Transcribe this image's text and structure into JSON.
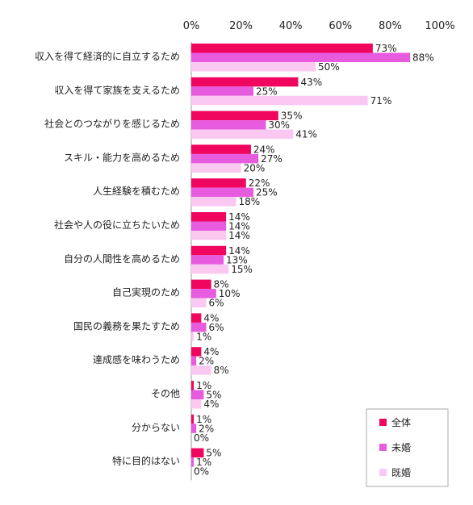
{
  "chart_data": {
    "type": "bar",
    "orientation": "horizontal",
    "x_ticks": [
      "0%",
      "20%",
      "40%",
      "60%",
      "80%",
      "100%"
    ],
    "xlim": [
      0,
      100
    ],
    "unit": "%",
    "categories": [
      "収入を得て経済的に自立するため",
      "収入を得て家族を支えるため",
      "社会とのつながりを感じるため",
      "スキル・能力を高めるため",
      "人生経験を積むため",
      "社会や人の役に立ちたいため",
      "自分の人間性を高めるため",
      "自己実現のため",
      "国民の義務を果たすため",
      "達成感を味わうため",
      "その他",
      "分からない",
      "特に目的はない"
    ],
    "series": [
      {
        "name": "全体",
        "color": "#f0055f",
        "values": [
          73,
          43,
          35,
          24,
          22,
          14,
          14,
          8,
          4,
          4,
          1,
          1,
          5
        ]
      },
      {
        "name": "未婚",
        "color": "#e75bdf",
        "values": [
          88,
          25,
          30,
          27,
          25,
          14,
          13,
          10,
          6,
          2,
          5,
          2,
          1
        ]
      },
      {
        "name": "既婚",
        "color": "#fbc8f2",
        "values": [
          50,
          71,
          41,
          20,
          18,
          14,
          15,
          6,
          1,
          8,
          4,
          0,
          0
        ]
      }
    ],
    "legend_position": "bottom-right",
    "grid": false
  }
}
